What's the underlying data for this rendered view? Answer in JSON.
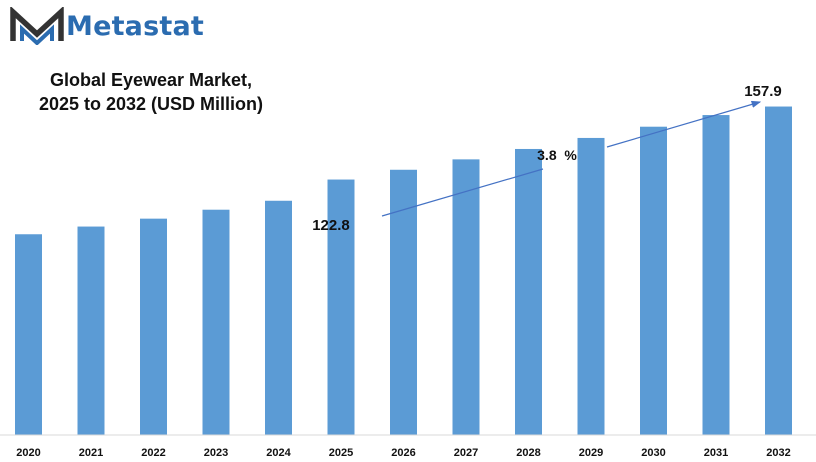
{
  "brand": {
    "name": "Metastat",
    "icon": "metastat-logo-icon",
    "color": "#2b6cb0"
  },
  "chart_data": {
    "type": "bar",
    "title_line1": "Global Eyewear Market,",
    "title_line2": "2025 to 2032 (USD Million)",
    "categories": [
      "2020",
      "2021",
      "2022",
      "2023",
      "2024",
      "2025",
      "2026",
      "2027",
      "2028",
      "2029",
      "2030",
      "2031",
      "2032"
    ],
    "values": [
      96.5,
      100.2,
      104.0,
      108.3,
      112.6,
      122.8,
      127.5,
      132.5,
      137.5,
      142.8,
      148.2,
      153.8,
      157.9
    ],
    "ylim": [
      0,
      162
    ],
    "grid": false,
    "bar_color": "#5b9bd5",
    "annotations": {
      "start_value": "122.8",
      "end_value": "157.9",
      "cagr": "3.8  %"
    }
  }
}
